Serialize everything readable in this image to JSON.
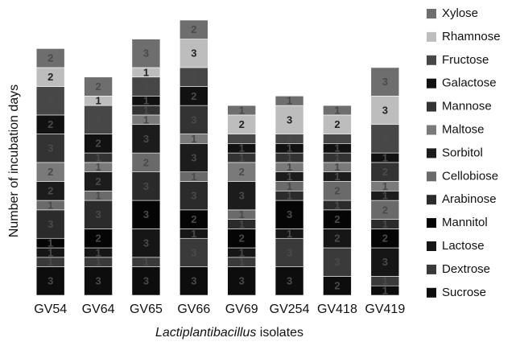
{
  "chart_data": {
    "type": "stacked_bar",
    "y_label": "Number of incubation days",
    "x_label": [
      "Lactiplantibacillus",
      "isolates"
    ],
    "categories": [
      "GV54",
      "GV64",
      "GV65",
      "GV66",
      "GV69",
      "GV254",
      "GV418",
      "GV419"
    ],
    "ylim": [
      0,
      29
    ],
    "series": [
      {
        "name": "Sucrose",
        "color": "#0d0d0d",
        "values": [
          3,
          3,
          3,
          3,
          3,
          3,
          2,
          1
        ]
      },
      {
        "name": "Dextrose",
        "color": "#3a3a3a",
        "values": [
          1,
          1,
          1,
          3,
          1,
          3,
          3,
          1
        ]
      },
      {
        "name": "Lactose",
        "color": "#161616",
        "values": [
          1,
          1,
          3,
          1,
          1,
          1,
          2,
          3
        ]
      },
      {
        "name": "Mannitol",
        "color": "#050505",
        "values": [
          1,
          2,
          3,
          2,
          2,
          3,
          2,
          2
        ]
      },
      {
        "name": "Arabinose",
        "color": "#2b2b2b",
        "values": [
          3,
          3,
          3,
          3,
          1,
          1,
          1,
          1
        ]
      },
      {
        "name": "Cellobiose",
        "color": "#6a6a6a",
        "values": [
          1,
          1,
          2,
          1,
          1,
          1,
          2,
          2
        ]
      },
      {
        "name": "Sorbitol",
        "color": "#1c1c1c",
        "values": [
          2,
          2,
          3,
          3,
          3,
          1,
          1,
          1
        ]
      },
      {
        "name": "Maltose",
        "color": "#7a7a7a",
        "values": [
          2,
          1,
          1,
          1,
          2,
          1,
          1,
          1
        ]
      },
      {
        "name": "Mannose",
        "color": "#333333",
        "values": [
          3,
          1,
          1,
          3,
          1,
          1,
          1,
          2
        ]
      },
      {
        "name": "Galactose",
        "color": "#111111",
        "values": [
          2,
          2,
          1,
          2,
          1,
          1,
          1,
          1
        ]
      },
      {
        "name": "Fructose",
        "color": "#474747",
        "values": [
          3,
          3,
          2,
          2,
          1,
          1,
          1,
          3
        ]
      },
      {
        "name": "Rhamnose",
        "color": "#bdbdbd",
        "values": [
          2,
          1,
          1,
          3,
          2,
          3,
          2,
          3
        ]
      },
      {
        "name": "Xylose",
        "color": "#6e6e6e",
        "values": [
          2,
          2,
          3,
          2,
          1,
          1,
          1,
          3
        ]
      }
    ]
  }
}
